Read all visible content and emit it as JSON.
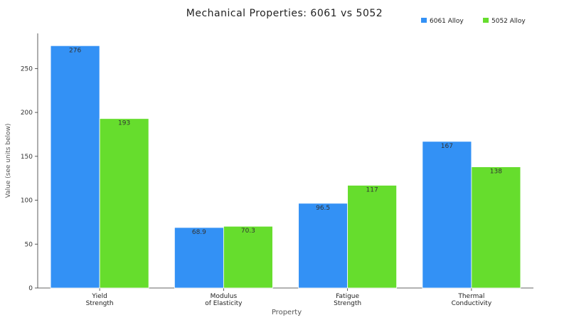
{
  "chart_data": {
    "type": "bar",
    "title": "Mechanical Properties: 6061 vs 5052",
    "xlabel": "Property",
    "ylabel": "Value (see units below)",
    "categories": [
      [
        "Yield",
        "Strength"
      ],
      [
        "Modulus",
        "of Elasticity"
      ],
      [
        "Fatigue",
        "Strength"
      ],
      [
        "Thermal",
        "Conductivity"
      ]
    ],
    "series": [
      {
        "name": "6061 Alloy",
        "color": "#3391f5",
        "values": [
          276,
          68.9,
          96.5,
          167
        ]
      },
      {
        "name": "5052 Alloy",
        "color": "#66dd2d",
        "values": [
          193,
          70.3,
          117,
          138
        ]
      }
    ],
    "ylim": [
      0,
      290
    ],
    "yticks": [
      0,
      50,
      100,
      150,
      200,
      250
    ],
    "legend": "top-right",
    "grid": false
  }
}
